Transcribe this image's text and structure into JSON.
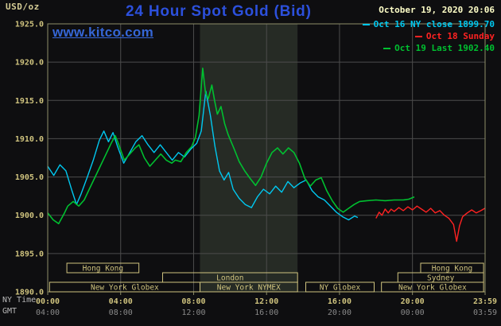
{
  "header": {
    "units_label": "USD/oz",
    "title": "24 Hour Spot Gold (Bid)",
    "datetime": "October 19, 2020 20:06",
    "watermark": "www.kitco.com"
  },
  "colors": {
    "background": "#0e0e10",
    "nymex_band": "#262b25",
    "grid": "#4c4c4c",
    "frame": "#8e8e68",
    "axis_text": "#cfc37e",
    "gmt_text": "#8a8a8a",
    "corner_text": "#b8b8b8",
    "title_blue": "#2c50dc",
    "link_blue": "#3566d6",
    "datetime_text": "#ffffc8"
  },
  "chart_data": {
    "type": "line",
    "title": "24 Hour Spot Gold (Bid)",
    "units": "USD/oz",
    "timestamp": "October 19, 2020 20:06",
    "ylim": [
      1890,
      1925
    ],
    "xlim_hours": [
      0,
      23.983
    ],
    "grid": true,
    "legend_position": "top-right",
    "y_grid": [
      1925,
      1920,
      1915,
      1910,
      1905,
      1900,
      1895,
      1890
    ],
    "y_tick_labels": [
      "1925.0",
      "1920.0",
      "1915.0",
      "1910.0",
      "1905.0",
      "1900.0",
      "1895.0",
      "1890.0"
    ],
    "x_tick_hours": [
      0,
      4,
      8,
      12,
      16,
      20,
      23.983
    ],
    "x_tick_labels_ny": [
      "00:00",
      "04:00",
      "08:00",
      "12:00",
      "16:00",
      "20:00",
      "23:59"
    ],
    "x_tick_labels_gmt": [
      "04:00",
      "08:00",
      "12:00",
      "16:00",
      "20:00",
      "00:00",
      "03:59"
    ],
    "x_axis_label_ny": "NY Time",
    "x_axis_label_gmt": "GMT",
    "nymex_band_hours": [
      8.35,
      13.7
    ],
    "series": [
      {
        "name": "Oct 16 NY close 1899.70",
        "color": "#00c8f0",
        "width": 1.4,
        "points": [
          [
            0.0,
            1906.4
          ],
          [
            0.33,
            1905.2
          ],
          [
            0.67,
            1906.6
          ],
          [
            1.0,
            1905.8
          ],
          [
            1.33,
            1903.2
          ],
          [
            1.58,
            1901.4
          ],
          [
            1.83,
            1902.8
          ],
          [
            2.17,
            1905.0
          ],
          [
            2.5,
            1907.2
          ],
          [
            2.83,
            1909.8
          ],
          [
            3.08,
            1911.0
          ],
          [
            3.33,
            1909.6
          ],
          [
            3.58,
            1910.8
          ],
          [
            3.83,
            1909.0
          ],
          [
            4.17,
            1906.8
          ],
          [
            4.5,
            1908.2
          ],
          [
            4.83,
            1909.6
          ],
          [
            5.17,
            1910.4
          ],
          [
            5.5,
            1909.2
          ],
          [
            5.83,
            1908.2
          ],
          [
            6.17,
            1909.2
          ],
          [
            6.5,
            1908.2
          ],
          [
            6.83,
            1907.2
          ],
          [
            7.17,
            1908.2
          ],
          [
            7.5,
            1907.6
          ],
          [
            7.83,
            1908.6
          ],
          [
            8.17,
            1909.4
          ],
          [
            8.42,
            1911.0
          ],
          [
            8.67,
            1916.2
          ],
          [
            8.92,
            1913.0
          ],
          [
            9.17,
            1909.0
          ],
          [
            9.42,
            1905.8
          ],
          [
            9.67,
            1904.6
          ],
          [
            9.92,
            1905.6
          ],
          [
            10.17,
            1903.4
          ],
          [
            10.5,
            1902.2
          ],
          [
            10.83,
            1901.4
          ],
          [
            11.17,
            1901.0
          ],
          [
            11.5,
            1902.4
          ],
          [
            11.83,
            1903.4
          ],
          [
            12.17,
            1902.8
          ],
          [
            12.5,
            1903.8
          ],
          [
            12.83,
            1903.0
          ],
          [
            13.17,
            1904.4
          ],
          [
            13.5,
            1903.6
          ],
          [
            13.83,
            1904.2
          ],
          [
            14.17,
            1904.6
          ],
          [
            14.5,
            1903.2
          ],
          [
            14.83,
            1902.4
          ],
          [
            15.17,
            1902.0
          ],
          [
            15.5,
            1901.2
          ],
          [
            15.83,
            1900.4
          ],
          [
            16.17,
            1899.8
          ],
          [
            16.5,
            1899.4
          ],
          [
            16.83,
            1899.9
          ],
          [
            17.0,
            1899.7
          ]
        ]
      },
      {
        "name": "Oct 18 Sunday",
        "color": "#ff2222",
        "width": 1.4,
        "points": [
          [
            18.0,
            1899.6
          ],
          [
            18.17,
            1900.4
          ],
          [
            18.33,
            1900.0
          ],
          [
            18.5,
            1900.8
          ],
          [
            18.67,
            1900.3
          ],
          [
            18.83,
            1900.8
          ],
          [
            19.0,
            1900.5
          ],
          [
            19.25,
            1901.0
          ],
          [
            19.5,
            1900.6
          ],
          [
            19.75,
            1901.1
          ],
          [
            20.0,
            1900.7
          ],
          [
            20.25,
            1901.2
          ],
          [
            20.5,
            1900.8
          ],
          [
            20.75,
            1900.4
          ],
          [
            21.0,
            1900.9
          ],
          [
            21.25,
            1900.3
          ],
          [
            21.5,
            1900.6
          ],
          [
            21.75,
            1900.0
          ],
          [
            22.0,
            1899.6
          ],
          [
            22.25,
            1898.8
          ],
          [
            22.42,
            1896.6
          ],
          [
            22.58,
            1898.6
          ],
          [
            22.75,
            1899.8
          ],
          [
            23.0,
            1900.3
          ],
          [
            23.25,
            1900.7
          ],
          [
            23.5,
            1900.3
          ],
          [
            23.75,
            1900.6
          ],
          [
            23.97,
            1900.9
          ]
        ]
      },
      {
        "name": "Oct 19 Last 1902.40",
        "color": "#00c030",
        "width": 1.6,
        "points": [
          [
            0.0,
            1900.3
          ],
          [
            0.3,
            1899.4
          ],
          [
            0.6,
            1898.9
          ],
          [
            0.9,
            1900.2
          ],
          [
            1.1,
            1901.2
          ],
          [
            1.4,
            1901.8
          ],
          [
            1.7,
            1901.2
          ],
          [
            2.0,
            1902.0
          ],
          [
            2.3,
            1903.5
          ],
          [
            2.6,
            1905.0
          ],
          [
            2.9,
            1906.5
          ],
          [
            3.2,
            1908.0
          ],
          [
            3.5,
            1909.5
          ],
          [
            3.7,
            1910.4
          ],
          [
            3.9,
            1909.2
          ],
          [
            4.2,
            1907.2
          ],
          [
            4.5,
            1908.0
          ],
          [
            4.8,
            1908.8
          ],
          [
            5.0,
            1909.2
          ],
          [
            5.3,
            1907.5
          ],
          [
            5.6,
            1906.4
          ],
          [
            5.9,
            1907.2
          ],
          [
            6.2,
            1908.0
          ],
          [
            6.5,
            1907.2
          ],
          [
            6.8,
            1906.8
          ],
          [
            7.0,
            1907.2
          ],
          [
            7.3,
            1907.0
          ],
          [
            7.6,
            1908.2
          ],
          [
            7.9,
            1909.0
          ],
          [
            8.1,
            1910.2
          ],
          [
            8.3,
            1913.0
          ],
          [
            8.5,
            1919.2
          ],
          [
            8.65,
            1916.0
          ],
          [
            8.8,
            1915.2
          ],
          [
            9.0,
            1917.0
          ],
          [
            9.15,
            1915.0
          ],
          [
            9.3,
            1913.2
          ],
          [
            9.5,
            1914.2
          ],
          [
            9.7,
            1912.0
          ],
          [
            9.9,
            1910.5
          ],
          [
            10.2,
            1908.8
          ],
          [
            10.5,
            1907.0
          ],
          [
            10.8,
            1905.8
          ],
          [
            11.1,
            1904.8
          ],
          [
            11.4,
            1903.9
          ],
          [
            11.7,
            1905.0
          ],
          [
            12.0,
            1906.8
          ],
          [
            12.3,
            1908.2
          ],
          [
            12.6,
            1908.8
          ],
          [
            12.9,
            1908.0
          ],
          [
            13.2,
            1908.8
          ],
          [
            13.5,
            1908.2
          ],
          [
            13.8,
            1906.8
          ],
          [
            14.1,
            1904.8
          ],
          [
            14.4,
            1903.8
          ],
          [
            14.7,
            1904.6
          ],
          [
            15.0,
            1904.9
          ],
          [
            15.3,
            1903.2
          ],
          [
            15.6,
            1901.9
          ],
          [
            15.9,
            1900.9
          ],
          [
            16.2,
            1900.4
          ],
          [
            16.5,
            1900.9
          ],
          [
            16.8,
            1901.4
          ],
          [
            17.1,
            1901.8
          ],
          [
            17.5,
            1901.9
          ],
          [
            18.0,
            1902.0
          ],
          [
            18.5,
            1901.9
          ],
          [
            19.0,
            1902.0
          ],
          [
            19.5,
            1902.0
          ],
          [
            19.8,
            1902.1
          ],
          [
            20.1,
            1902.4
          ]
        ]
      }
    ],
    "sessions": [
      {
        "label": "Hong Kong",
        "row": 0,
        "start": 1.05,
        "end": 5.0
      },
      {
        "label": "Hong Kong",
        "row": 0,
        "start": 20.45,
        "end": 23.9
      },
      {
        "label": "London",
        "row": 1,
        "start": 6.3,
        "end": 13.7
      },
      {
        "label": "Sydney",
        "row": 1,
        "start": 19.2,
        "end": 23.9
      },
      {
        "label": "New York Globex",
        "row": 2,
        "start": 0.1,
        "end": 8.35
      },
      {
        "label": "New York NYMEX",
        "row": 2,
        "start": 8.35,
        "end": 13.7
      },
      {
        "label": "NY Globex",
        "row": 2,
        "start": 14.15,
        "end": 17.9
      },
      {
        "label": "New York Globex",
        "row": 2,
        "start": 18.3,
        "end": 23.9
      }
    ]
  }
}
